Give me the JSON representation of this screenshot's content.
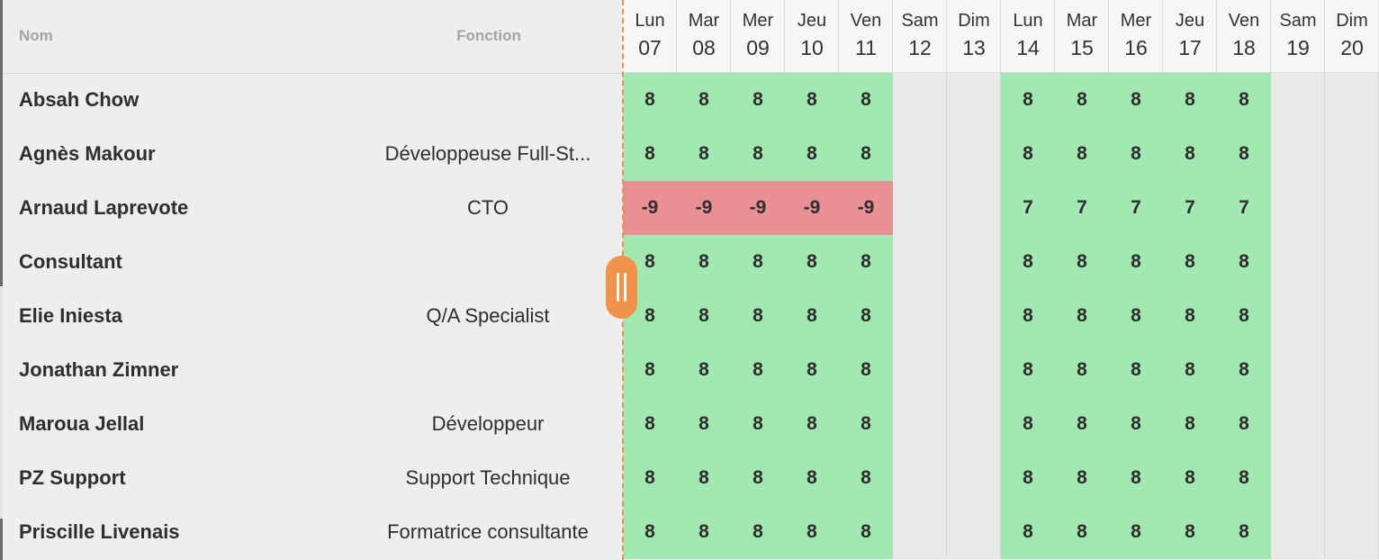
{
  "columns": {
    "name_header": "Nom",
    "function_header": "Fonction"
  },
  "days": [
    {
      "name": "Lun",
      "date": "07",
      "weekend": false
    },
    {
      "name": "Mar",
      "date": "08",
      "weekend": false
    },
    {
      "name": "Mer",
      "date": "09",
      "weekend": false
    },
    {
      "name": "Jeu",
      "date": "10",
      "weekend": false
    },
    {
      "name": "Ven",
      "date": "11",
      "weekend": false
    },
    {
      "name": "Sam",
      "date": "12",
      "weekend": true
    },
    {
      "name": "Dim",
      "date": "13",
      "weekend": true
    },
    {
      "name": "Lun",
      "date": "14",
      "weekend": false
    },
    {
      "name": "Mar",
      "date": "15",
      "weekend": false
    },
    {
      "name": "Mer",
      "date": "16",
      "weekend": false
    },
    {
      "name": "Jeu",
      "date": "17",
      "weekend": false
    },
    {
      "name": "Ven",
      "date": "18",
      "weekend": false
    },
    {
      "name": "Sam",
      "date": "19",
      "weekend": true
    },
    {
      "name": "Dim",
      "date": "20",
      "weekend": true
    }
  ],
  "employees": [
    {
      "name": "Absah Chow",
      "function": "",
      "values": [
        "8",
        "8",
        "8",
        "8",
        "8",
        "",
        "",
        "8",
        "8",
        "8",
        "8",
        "8",
        "",
        ""
      ]
    },
    {
      "name": "Agnès Makour",
      "function": "Développeuse Full-St...",
      "values": [
        "8",
        "8",
        "8",
        "8",
        "8",
        "",
        "",
        "8",
        "8",
        "8",
        "8",
        "8",
        "",
        ""
      ]
    },
    {
      "name": "Arnaud Laprevote",
      "function": "CTO",
      "values": [
        "-9",
        "-9",
        "-9",
        "-9",
        "-9",
        "",
        "",
        "7",
        "7",
        "7",
        "7",
        "7",
        "",
        ""
      ]
    },
    {
      "name": "Consultant",
      "function": "",
      "values": [
        "8",
        "8",
        "8",
        "8",
        "8",
        "",
        "",
        "8",
        "8",
        "8",
        "8",
        "8",
        "",
        ""
      ]
    },
    {
      "name": "Elie Iniesta",
      "function": "Q/A Specialist",
      "values": [
        "8",
        "8",
        "8",
        "8",
        "8",
        "",
        "",
        "8",
        "8",
        "8",
        "8",
        "8",
        "",
        ""
      ]
    },
    {
      "name": "Jonathan Zimner",
      "function": "",
      "values": [
        "8",
        "8",
        "8",
        "8",
        "8",
        "",
        "",
        "8",
        "8",
        "8",
        "8",
        "8",
        "",
        ""
      ]
    },
    {
      "name": "Maroua Jellal",
      "function": "Développeur",
      "values": [
        "8",
        "8",
        "8",
        "8",
        "8",
        "",
        "",
        "8",
        "8",
        "8",
        "8",
        "8",
        "",
        ""
      ]
    },
    {
      "name": "PZ Support",
      "function": "Support Technique",
      "values": [
        "8",
        "8",
        "8",
        "8",
        "8",
        "",
        "",
        "8",
        "8",
        "8",
        "8",
        "8",
        "",
        ""
      ]
    },
    {
      "name": "Priscille Livenais",
      "function": "Formatrice consultante",
      "values": [
        "8",
        "8",
        "8",
        "8",
        "8",
        "",
        "",
        "8",
        "8",
        "8",
        "8",
        "8",
        "",
        ""
      ]
    }
  ],
  "colors": {
    "available": "#a2e8b2",
    "overbooked": "#e89094",
    "weekend": "#e9e9e9",
    "accent": "#f0924a"
  },
  "icons": {
    "resize_handle": "drag-handle-icon"
  }
}
